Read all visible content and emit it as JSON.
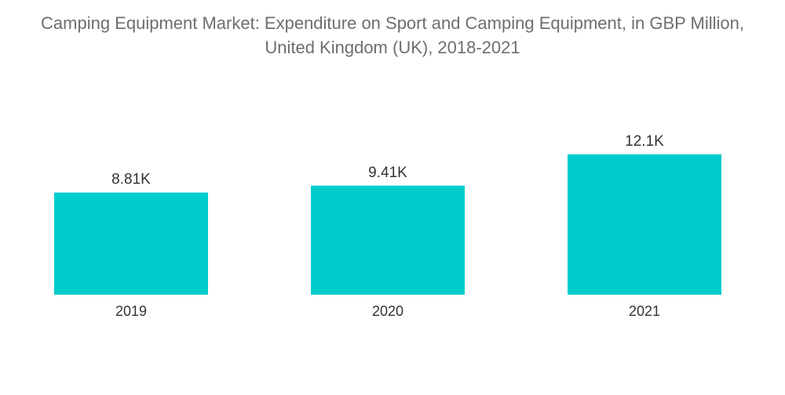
{
  "chart_data": {
    "type": "bar",
    "title": "Camping Equipment Market: Expenditure on Sport and Camping Equipment, in GBP Million, United Kingdom (UK), 2018-2021",
    "categories": [
      "2019",
      "2020",
      "2021"
    ],
    "values": [
      8810,
      9410,
      12100
    ],
    "data_labels": [
      "8.81K",
      "9.41K",
      "12.1K"
    ],
    "xlabel": "",
    "ylabel": "",
    "ylim": [
      0,
      12100
    ],
    "grid": false,
    "legend": "none",
    "bar_color": "#00cccc"
  }
}
